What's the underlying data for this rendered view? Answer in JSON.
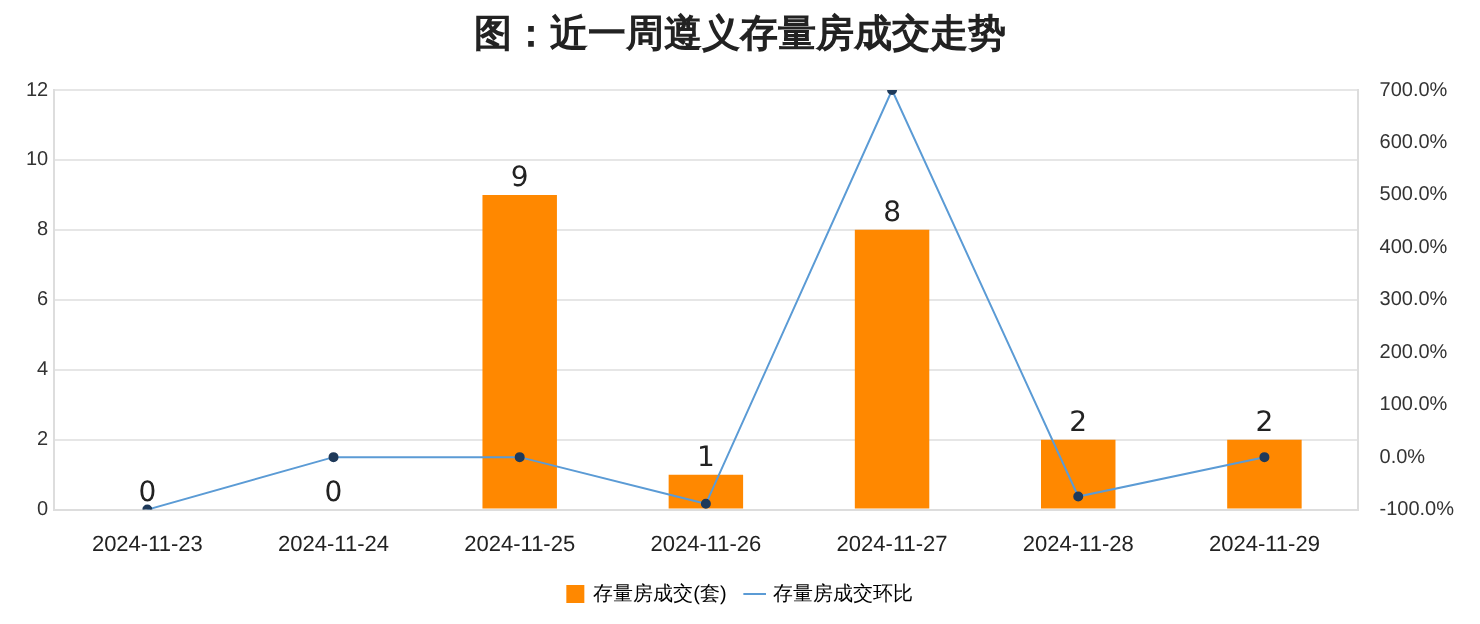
{
  "chart_data": {
    "type": "bar",
    "title": "图：近一周遵义存量房成交走势",
    "categories": [
      "2024-11-23",
      "2024-11-24",
      "2024-11-25",
      "2024-11-26",
      "2024-11-27",
      "2024-11-28",
      "2024-11-29"
    ],
    "series": [
      {
        "name": "存量房成交(套)",
        "color": "#ff8800",
        "values": [
          0,
          0,
          9,
          1,
          8,
          2,
          2
        ],
        "value_labels": [
          "0",
          "0",
          "9",
          "1",
          "8",
          "2",
          "2"
        ]
      },
      {
        "name": "存量房成交环比",
        "type": "line",
        "axis": "y2",
        "color": "#5b9bd5",
        "marker": "circle",
        "values": [
          -100,
          0,
          0,
          -89,
          700,
          -75,
          0
        ]
      }
    ],
    "ylim": [
      0,
      12
    ],
    "yticks": [
      0,
      2,
      4,
      6,
      8,
      10,
      12
    ],
    "y2lim": [
      -100,
      700
    ],
    "y2ticks": [
      {
        "value": -100,
        "label": "-100.0%"
      },
      {
        "value": 0,
        "label": "0.0%"
      },
      {
        "value": 100,
        "label": "100.0%"
      },
      {
        "value": 200,
        "label": "200.0%"
      },
      {
        "value": 300,
        "label": "300.0%"
      },
      {
        "value": 400,
        "label": "400.0%"
      },
      {
        "value": 500,
        "label": "500.0%"
      },
      {
        "value": 600,
        "label": "600.0%"
      },
      {
        "value": 700,
        "label": "700.0%"
      }
    ],
    "grid": "y",
    "legend": "bottom"
  }
}
